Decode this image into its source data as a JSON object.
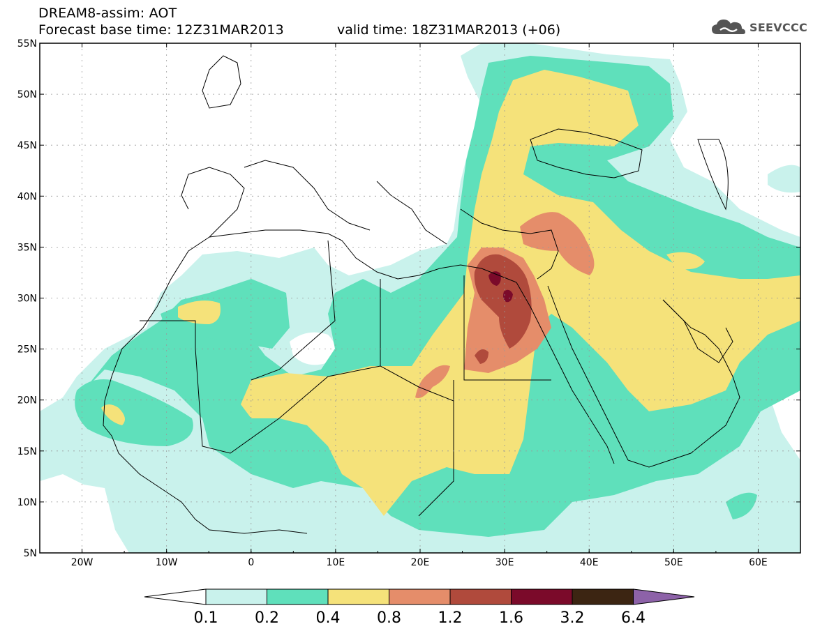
{
  "header": {
    "line1": "DREAM8-assim: AOT",
    "line2": "Forecast base time: 12Z31MAR2013",
    "valid": "valid time: 18Z31MAR2013 (+06)"
  },
  "logo": {
    "text": "SEEVCCC",
    "icon": "cloud-icon"
  },
  "map": {
    "lon_range": [
      -25,
      65
    ],
    "lat_range": [
      5,
      55
    ],
    "lat_ticks": [
      "5N",
      "10N",
      "15N",
      "20N",
      "25N",
      "30N",
      "35N",
      "40N",
      "45N",
      "50N",
      "55N"
    ],
    "lon_ticks": [
      "20W",
      "10W",
      "0",
      "10E",
      "20E",
      "30E",
      "40E",
      "50E",
      "60E"
    ]
  },
  "colorbar": {
    "labels": [
      "0.1",
      "0.2",
      "0.4",
      "0.8",
      "1.2",
      "1.6",
      "3.2",
      "6.4"
    ],
    "colors": [
      "#ffffff",
      "#c9f2ec",
      "#5fe0bb",
      "#f5e27a",
      "#e58d6a",
      "#b04a3c",
      "#7b0a2a",
      "#3c2512",
      "#8d62a8"
    ]
  }
}
